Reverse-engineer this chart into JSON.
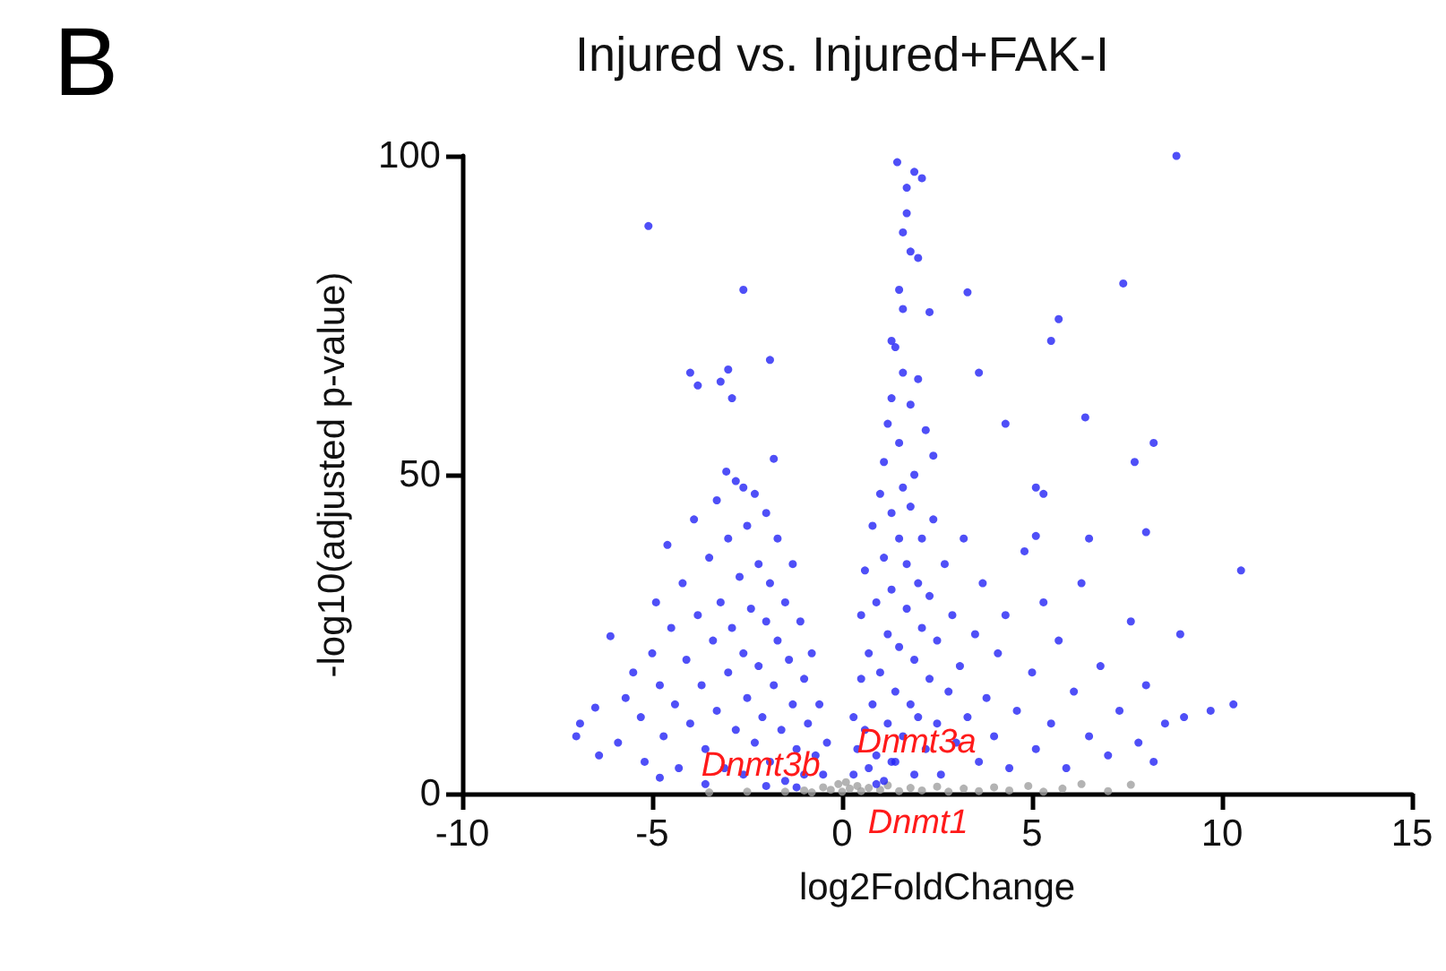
{
  "chart_data": {
    "type": "scatter",
    "title": "Injured vs. Injured+FAK-I",
    "xlabel": "log2FoldChange",
    "ylabel": "-log10(adjusted p-value)",
    "xlim": [
      -10,
      15
    ],
    "xticks": [
      -10,
      -5,
      0,
      5,
      10,
      15
    ],
    "ylim": [
      0,
      100
    ],
    "yticks": [
      0,
      50,
      100
    ],
    "grid": false,
    "marker": "circle",
    "annotations": [
      "B",
      {
        "text": "Dnmt3b",
        "x": -0.1,
        "y": 0.5
      },
      {
        "text": "Dnmt3a",
        "x": 0.2,
        "y": 2
      },
      {
        "text": "Dnmt1",
        "x": 0.3,
        "y": 0.3
      }
    ],
    "series": [
      {
        "color": "#a0a0a0",
        "x": [
          -3.5,
          -2.5,
          -1.5,
          -1.0,
          -0.8,
          -0.5,
          -0.3,
          -0.1,
          0,
          0.1,
          0.2,
          0.4,
          0.5,
          0.7,
          1.0,
          1.2,
          1.5,
          1.8,
          2.1,
          2.5,
          2.8,
          3.2,
          3.6,
          4.0,
          4.4,
          4.9,
          5.3,
          5.8,
          6.3,
          7.0,
          7.6
        ],
        "values": [
          0.2,
          0.3,
          0.3,
          0.5,
          0.2,
          1,
          0.6,
          1.5,
          0.3,
          1.8,
          0.8,
          1.2,
          0.4,
          0.9,
          0.6,
          1.3,
          0.4,
          0.9,
          0.5,
          1.1,
          0.3,
          0.8,
          0.4,
          1.0,
          0.5,
          1.2,
          0.3,
          0.8,
          1.5,
          0.4,
          1.4
        ]
      },
      {
        "color": "#2323f5",
        "x": [
          -5.1,
          -2.6,
          -4.0,
          -3.8,
          -3.0,
          -3.2,
          -2.9,
          -1.9,
          -3.05,
          -1.8,
          -2.6,
          -7.0,
          -6.9,
          -6.5,
          -6.1,
          -5.7,
          -6.4,
          -5.9,
          -5.5,
          -5.3,
          -5.2,
          -5.0,
          -4.9,
          -4.8,
          -4.7,
          -4.6,
          -4.5,
          -4.4,
          -4.3,
          -4.2,
          -4.1,
          -4.0,
          -3.9,
          -3.8,
          -3.7,
          -3.6,
          -3.5,
          -3.4,
          -3.3,
          -3.3,
          -3.2,
          -3.1,
          -3.0,
          -3.0,
          -2.9,
          -2.8,
          -2.8,
          -2.7,
          -2.6,
          -2.6,
          -2.5,
          -2.5,
          -2.4,
          -2.3,
          -2.3,
          -2.2,
          -2.2,
          -2.1,
          -2.0,
          -2.0,
          -1.9,
          -1.9,
          -1.8,
          -1.7,
          -1.7,
          -1.6,
          -1.5,
          -1.5,
          -1.4,
          -1.3,
          -1.3,
          -1.2,
          -1.1,
          -1.0,
          -1.0,
          -0.9,
          -0.8,
          -0.7,
          -0.6,
          -0.5,
          -0.4,
          -3.6,
          -2.0,
          -1.2,
          -4.8,
          1.45,
          1.9,
          2.1,
          1.7,
          1.7,
          1.6,
          1.8,
          2.0,
          1.5,
          1.6,
          2.3,
          1.3,
          1.4,
          1.6,
          2.0,
          1.3,
          1.8,
          1.2,
          2.2,
          1.5,
          2.4,
          1.1,
          1.9,
          3.3,
          3.6,
          7.4,
          5.7,
          5.5,
          4.3,
          6.4,
          8.2,
          7.7,
          8.8,
          0.3,
          0.3,
          0.4,
          0.5,
          0.5,
          0.6,
          0.6,
          0.7,
          0.7,
          0.8,
          0.8,
          0.9,
          0.9,
          1.0,
          1.0,
          1.1,
          1.1,
          1.2,
          1.2,
          1.3,
          1.3,
          1.4,
          1.4,
          1.5,
          1.5,
          1.6,
          1.6,
          1.7,
          1.7,
          1.8,
          1.8,
          1.9,
          1.9,
          2.0,
          2.0,
          2.1,
          2.1,
          2.2,
          2.3,
          2.3,
          2.4,
          2.5,
          2.5,
          2.6,
          2.7,
          2.8,
          2.9,
          3.0,
          3.1,
          3.2,
          3.3,
          3.5,
          3.6,
          3.7,
          3.8,
          4.0,
          4.1,
          4.3,
          4.4,
          4.6,
          4.8,
          5.0,
          5.1,
          5.3,
          5.5,
          5.7,
          5.9,
          6.1,
          6.3,
          6.5,
          6.8,
          7.0,
          7.3,
          7.6,
          7.8,
          8.0,
          8.2,
          8.5,
          8.9,
          9.0,
          9.7,
          10.3,
          10.5,
          1.3,
          0.9,
          5.1,
          5.3,
          6.5,
          8.0,
          5.1
        ],
        "values": [
          89,
          79,
          66,
          64,
          66.5,
          64.6,
          62,
          68,
          50.5,
          52.5,
          48,
          9,
          11,
          13.5,
          24.7,
          15,
          6,
          8,
          19,
          12,
          5,
          22,
          30,
          17,
          9,
          39,
          26,
          14,
          4,
          33,
          21,
          11,
          43,
          28,
          17,
          7,
          37,
          24,
          46,
          13,
          30,
          4,
          40,
          19,
          26,
          10,
          49,
          34,
          22,
          3,
          42,
          15,
          29,
          8,
          47,
          36,
          20,
          12,
          44,
          27,
          5,
          33,
          17,
          40,
          24,
          10,
          30,
          2,
          21,
          36,
          14,
          7,
          27,
          18,
          3,
          11,
          22,
          6,
          14,
          3,
          8,
          1.5,
          1.2,
          1.0,
          2.5,
          99,
          97.5,
          96.5,
          95,
          91,
          88,
          85,
          84,
          79,
          76,
          75.5,
          71,
          70,
          66,
          65,
          62,
          61,
          58,
          57,
          55,
          53,
          52,
          50,
          78.6,
          66,
          80,
          74.4,
          71,
          58,
          59,
          55,
          52,
          100,
          3,
          12,
          7,
          18,
          28,
          10,
          35,
          4,
          22,
          42,
          14,
          30,
          6,
          47,
          19,
          37,
          2,
          25,
          11,
          44,
          32,
          16,
          5,
          40,
          23,
          48,
          9,
          29,
          36,
          14,
          45,
          21,
          3,
          33,
          12,
          40,
          26,
          7,
          18,
          31,
          43,
          11,
          24,
          3,
          36,
          16,
          28,
          8,
          20,
          40,
          12,
          25,
          5,
          33,
          15,
          9,
          22,
          28,
          4,
          13,
          38,
          19,
          7,
          30,
          11,
          24,
          4,
          16,
          33,
          9,
          20,
          6,
          13,
          27,
          8,
          17,
          5,
          11,
          25,
          12,
          13,
          14,
          35,
          5,
          1.5,
          48,
          47,
          40,
          41,
          40.4
        ]
      }
    ]
  }
}
